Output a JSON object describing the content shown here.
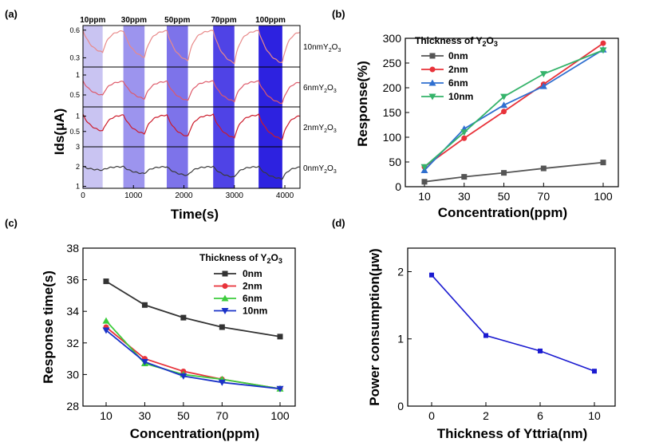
{
  "panels": {
    "a": {
      "label": "(a)",
      "xlabel": "Time(s)",
      "ylabel": "Ids(μA)",
      "xticks": [
        "0",
        "1000",
        "2000",
        "3000",
        "4000"
      ],
      "xlim": [
        0,
        4300
      ],
      "pulses": [
        {
          "label": "10ppm",
          "start": 0,
          "end": 390,
          "color": "#c9c4f2"
        },
        {
          "label": "30ppm",
          "start": 800,
          "end": 1220,
          "color": "#9c94ee"
        },
        {
          "label": "50ppm",
          "start": 1660,
          "end": 2080,
          "color": "#7d73ea"
        },
        {
          "label": "70ppm",
          "start": 2580,
          "end": 3000,
          "color": "#4f43e6"
        },
        {
          "label": "100ppm",
          "start": 3480,
          "end": 3950,
          "color": "#2d22e0"
        }
      ],
      "traces": [
        {
          "name_main": "10nmY",
          "name_sub1": "2",
          "name_mid": "O",
          "name_sub2": "3",
          "color": "#e88a8a",
          "ylim": [
            0.2,
            0.65
          ],
          "yticks": [
            {
              "v": 0.6,
              "t": "0.6"
            },
            {
              "v": 0.3,
              "t": "0.3"
            }
          ],
          "base": 0.6,
          "low": [
            0.33,
            0.27,
            0.23,
            0.2,
            0.2
          ]
        },
        {
          "name_main": "6nmY",
          "name_sub1": "2",
          "name_mid": "O",
          "name_sub2": "3",
          "color": "#de5a6a",
          "ylim": [
            0.2,
            1.2
          ],
          "yticks": [
            {
              "v": 1.0,
              "t": "1"
            },
            {
              "v": 0.5,
              "t": "0.5"
            }
          ],
          "base": 0.85,
          "low": [
            0.45,
            0.35,
            0.3,
            0.28,
            0.22
          ]
        },
        {
          "name_main": "2nmY",
          "name_sub1": "2",
          "name_mid": "O",
          "name_sub2": "3",
          "color": "#cc1b2b",
          "ylim": [
            0.0,
            1.3
          ],
          "yticks": [
            {
              "v": 1.0,
              "t": "1"
            },
            {
              "v": 0.5,
              "t": "0.5"
            }
          ],
          "base": 1.05,
          "low": [
            0.45,
            0.35,
            0.25,
            0.2,
            0.15
          ]
        },
        {
          "name_main": "0nmY",
          "name_sub1": "2",
          "name_mid": "O",
          "name_sub2": "3",
          "color": "#3a3a3a",
          "ylim": [
            0.9,
            3.0
          ],
          "yticks": [
            {
              "v": 3,
              "t": "3"
            },
            {
              "v": 2,
              "t": "2"
            },
            {
              "v": 1,
              "t": "1"
            }
          ],
          "base": 2.0,
          "low": [
            1.8,
            1.6,
            1.5,
            1.4,
            1.3
          ]
        }
      ]
    },
    "b": {
      "label": "(b)",
      "xlabel": "Concentration(ppm)",
      "ylabel": "Response(%)",
      "legend_title_main": "Thickness of Y",
      "legend_title_sub1": "2",
      "legend_title_mid": "O",
      "legend_title_sub2": "3",
      "ylim": [
        0,
        300
      ],
      "yticks": [
        "0",
        "50",
        "100",
        "150",
        "200",
        "250",
        "300"
      ],
      "xticks": [
        "10",
        "30",
        "50",
        "70",
        "100"
      ]
    },
    "c": {
      "label": "(c)",
      "xlabel": "Concentration(ppm)",
      "ylabel": "Response time(s)",
      "legend_title_main": "Thickness of Y",
      "legend_title_sub1": "2",
      "legend_title_mid": "O",
      "legend_title_sub2": "3",
      "ylim": [
        28,
        38
      ],
      "yticks": [
        "28",
        "30",
        "32",
        "34",
        "36",
        "38"
      ],
      "xticks": [
        "10",
        "30",
        "50",
        "70",
        "100"
      ]
    },
    "d": {
      "label": "(d)",
      "xlabel": "Thickness of Yttria(nm)",
      "ylabel": "Power consumption(μw)",
      "ylim": [
        0,
        2.35
      ],
      "yticks": [
        "0",
        "1",
        "2"
      ],
      "xticks": [
        "0",
        "2",
        "6",
        "10"
      ]
    }
  },
  "chart_data": [
    {
      "type": "line",
      "panel": "(a)",
      "xlabel": "Time(s)",
      "ylabel": "Ids(μA)",
      "xlim": [
        0,
        4300
      ],
      "annotations": [
        "10ppm",
        "30ppm",
        "50ppm",
        "70ppm",
        "100ppm"
      ],
      "series": [
        {
          "name": "10nmY2O3",
          "color": "#e88a8a"
        },
        {
          "name": "6nmY2O3",
          "color": "#de5a6a"
        },
        {
          "name": "2nmY2O3",
          "color": "#cc1b2b"
        },
        {
          "name": "0nmY2O3",
          "color": "#3a3a3a"
        }
      ]
    },
    {
      "type": "line",
      "panel": "(b)",
      "xlabel": "Concentration(ppm)",
      "ylabel": "Response(%)",
      "ylim": [
        0,
        300
      ],
      "categories": [
        "10",
        "30",
        "50",
        "70",
        "100"
      ],
      "series": [
        {
          "name": "0nm",
          "color": "#555555",
          "marker": "square",
          "values": [
            10,
            20,
            28,
            37,
            49
          ]
        },
        {
          "name": "2nm",
          "color": "#e8323a",
          "marker": "circle",
          "values": [
            40,
            98,
            152,
            207,
            290
          ]
        },
        {
          "name": "6nm",
          "color": "#2f6fd0",
          "marker": "triangle-up",
          "values": [
            33,
            117,
            165,
            203,
            277
          ]
        },
        {
          "name": "10nm",
          "color": "#35b36a",
          "marker": "triangle-down",
          "values": [
            40,
            110,
            182,
            228,
            276
          ]
        }
      ]
    },
    {
      "type": "line",
      "panel": "(c)",
      "xlabel": "Concentration(ppm)",
      "ylabel": "Response time(s)",
      "ylim": [
        28,
        38
      ],
      "categories": [
        "10",
        "30",
        "50",
        "70",
        "100"
      ],
      "series": [
        {
          "name": "0nm",
          "color": "#333333",
          "marker": "square",
          "values": [
            35.9,
            34.4,
            33.6,
            33.0,
            32.4
          ]
        },
        {
          "name": "2nm",
          "color": "#e8323a",
          "marker": "circle",
          "values": [
            33.0,
            31.0,
            30.2,
            29.7,
            29.1
          ]
        },
        {
          "name": "6nm",
          "color": "#3ccc3c",
          "marker": "triangle-up",
          "values": [
            33.4,
            30.7,
            30.0,
            29.7,
            29.1
          ]
        },
        {
          "name": "10nm",
          "color": "#1a32c8",
          "marker": "triangle-down",
          "values": [
            32.8,
            30.8,
            29.9,
            29.5,
            29.1
          ]
        }
      ]
    },
    {
      "type": "line",
      "panel": "(d)",
      "xlabel": "Thickness of Yttria(nm)",
      "ylabel": "Power consumption(μw)",
      "ylim": [
        0,
        2.35
      ],
      "categories": [
        "0",
        "2",
        "6",
        "10"
      ],
      "series": [
        {
          "color": "#1a1ad0",
          "marker": "square",
          "values": [
            1.95,
            1.05,
            0.82,
            0.52
          ]
        }
      ]
    }
  ]
}
